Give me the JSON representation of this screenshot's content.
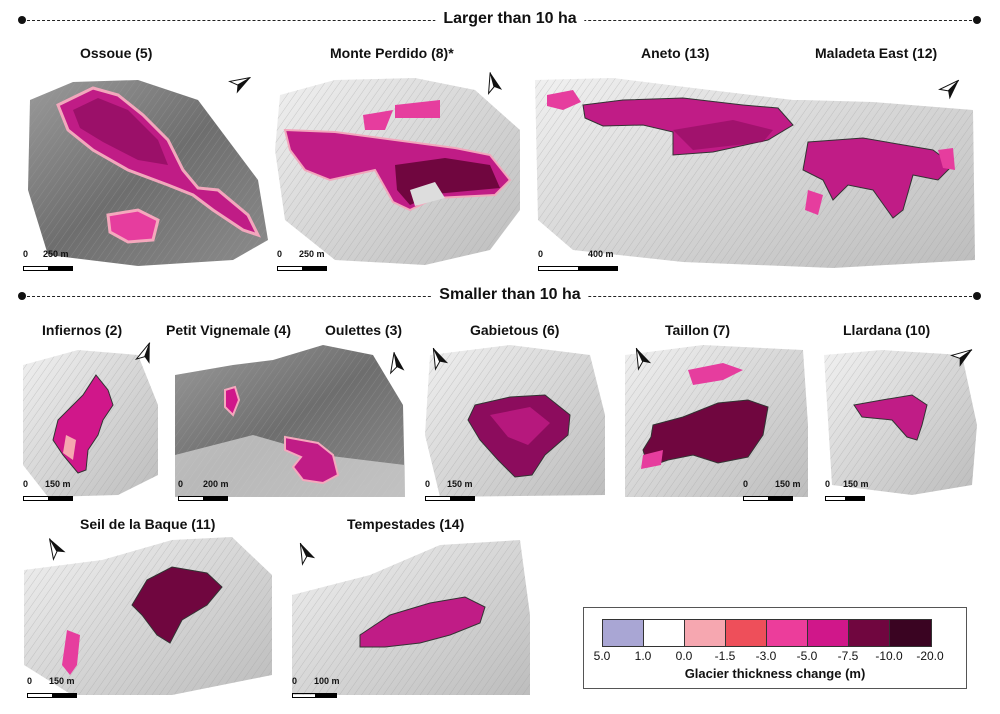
{
  "sections": {
    "large": "Larger than 10 ha",
    "small": "Smaller than 10 ha"
  },
  "panels": {
    "ossoue": {
      "title": "Ossoue (5)",
      "scale": "250 m"
    },
    "monte_perdido": {
      "title": "Monte Perdido (8)*",
      "scale": "250 m"
    },
    "aneto": {
      "title": "Aneto (13)",
      "scale": "400 m"
    },
    "maladeta_east": {
      "title": "Maladeta East (12)"
    },
    "infiernos": {
      "title": "Infiernos (2)",
      "scale": "150 m"
    },
    "petit_vignemale": {
      "title": "Petit Vignemale (4)",
      "scale": "200 m"
    },
    "oulettes": {
      "title": "Oulettes (3)"
    },
    "gabietous": {
      "title": "Gabietous (6)",
      "scale": "150 m"
    },
    "taillon": {
      "title": "Taillon (7)",
      "scale": "150 m"
    },
    "llardana": {
      "title": "Llardana (10)",
      "scale": "150 m"
    },
    "seil_de_la_baque": {
      "title": "Seil de la Baque (11)",
      "scale": "150 m"
    },
    "tempestades": {
      "title": "Tempestades (14)",
      "scale": "100 m"
    }
  },
  "scale_zero": "0",
  "north_label": "N",
  "legend": {
    "title": "Glacier thickness change (m)",
    "ticks": [
      "5.0",
      "1.0",
      "0.0",
      "-1.5",
      "-3.0",
      "-5.0",
      "-7.5",
      "-10.0",
      "-20.0"
    ],
    "colors": [
      "#a9a6d4",
      "#ffffff",
      "#f6a7b0",
      "#ee4f5a",
      "#ec3d9b",
      "#d0178a",
      "#70063f",
      "#3a0422"
    ]
  }
}
